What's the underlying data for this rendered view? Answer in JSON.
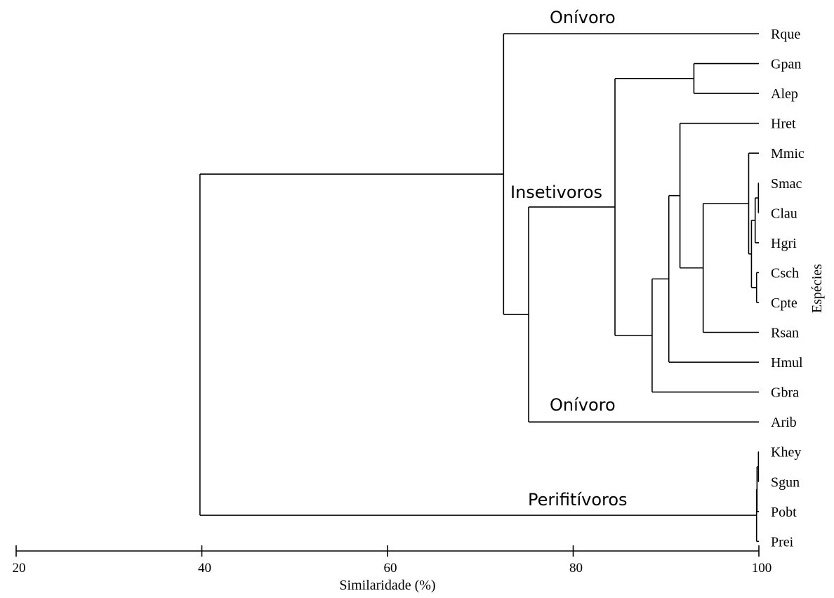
{
  "chart_data": {
    "type": "dendrogram",
    "xlabel": "Similaridade (%)",
    "ylabel": "Espécies",
    "xlim": [
      20,
      100
    ],
    "xticks": [
      "20",
      "40",
      "60",
      "80",
      "100"
    ],
    "leaves": [
      "Rque",
      "Gpan",
      "Alep",
      "Hret",
      "Mmic",
      "Smac",
      "Clau",
      "Hgri",
      "Csch",
      "Cpte",
      "Rsan",
      "Hmul",
      "Gbra",
      "Arib",
      "Khey",
      "Sgun",
      "Pobt",
      "Prei"
    ],
    "merges": [
      {
        "a": "Smac",
        "b": "Clau",
        "similarity": 99.95
      },
      {
        "a": "Csch",
        "b": "Cpte",
        "similarity": 99.75
      },
      {
        "a": "Smac+Clau",
        "b": "Hgri",
        "similarity": 99.6
      },
      {
        "a": "Smac+Clau+Hgri",
        "b": "Csch+Cpte",
        "similarity": 99.2
      },
      {
        "a": "Mmic",
        "b": "Smac+Clau+Hgri+Csch+Cpte",
        "similarity": 98.9
      },
      {
        "a": "Mmic+…+Cpte",
        "b": "Rsan",
        "similarity": 94.0
      },
      {
        "a": "Hret",
        "b": "Mmic+…+Rsan",
        "similarity": 91.5
      },
      {
        "a": "Hret+…+Rsan",
        "b": "Hmul",
        "similarity": 90.3
      },
      {
        "a": "Hret+…+Hmul",
        "b": "Gbra",
        "similarity": 88.5
      },
      {
        "a": "Gpan",
        "b": "Alep",
        "similarity": 93.0
      },
      {
        "a": "Gpan+Alep",
        "b": "Hret+…+Gbra",
        "similarity": 84.5
      },
      {
        "a": "Gpan+…+Gbra",
        "b": "Arib",
        "similarity": 75.2
      },
      {
        "a": "Rque",
        "b": "Gpan+…+Arib",
        "similarity": 72.5
      },
      {
        "a": "Khey",
        "b": "Sgun",
        "similarity": 99.95
      },
      {
        "a": "Khey+Sgun",
        "b": "Pobt",
        "similarity": 99.8
      },
      {
        "a": "Khey+Sgun+Pobt",
        "b": "Prei",
        "similarity": 99.75
      },
      {
        "a": "Rque+…+Arib",
        "b": "Khey+Sgun+Pobt+Prei",
        "similarity": 39.8
      }
    ],
    "group_labels": [
      "Onívoro",
      "Insetivoros",
      "Onívoro",
      "Perifitívoros"
    ]
  }
}
